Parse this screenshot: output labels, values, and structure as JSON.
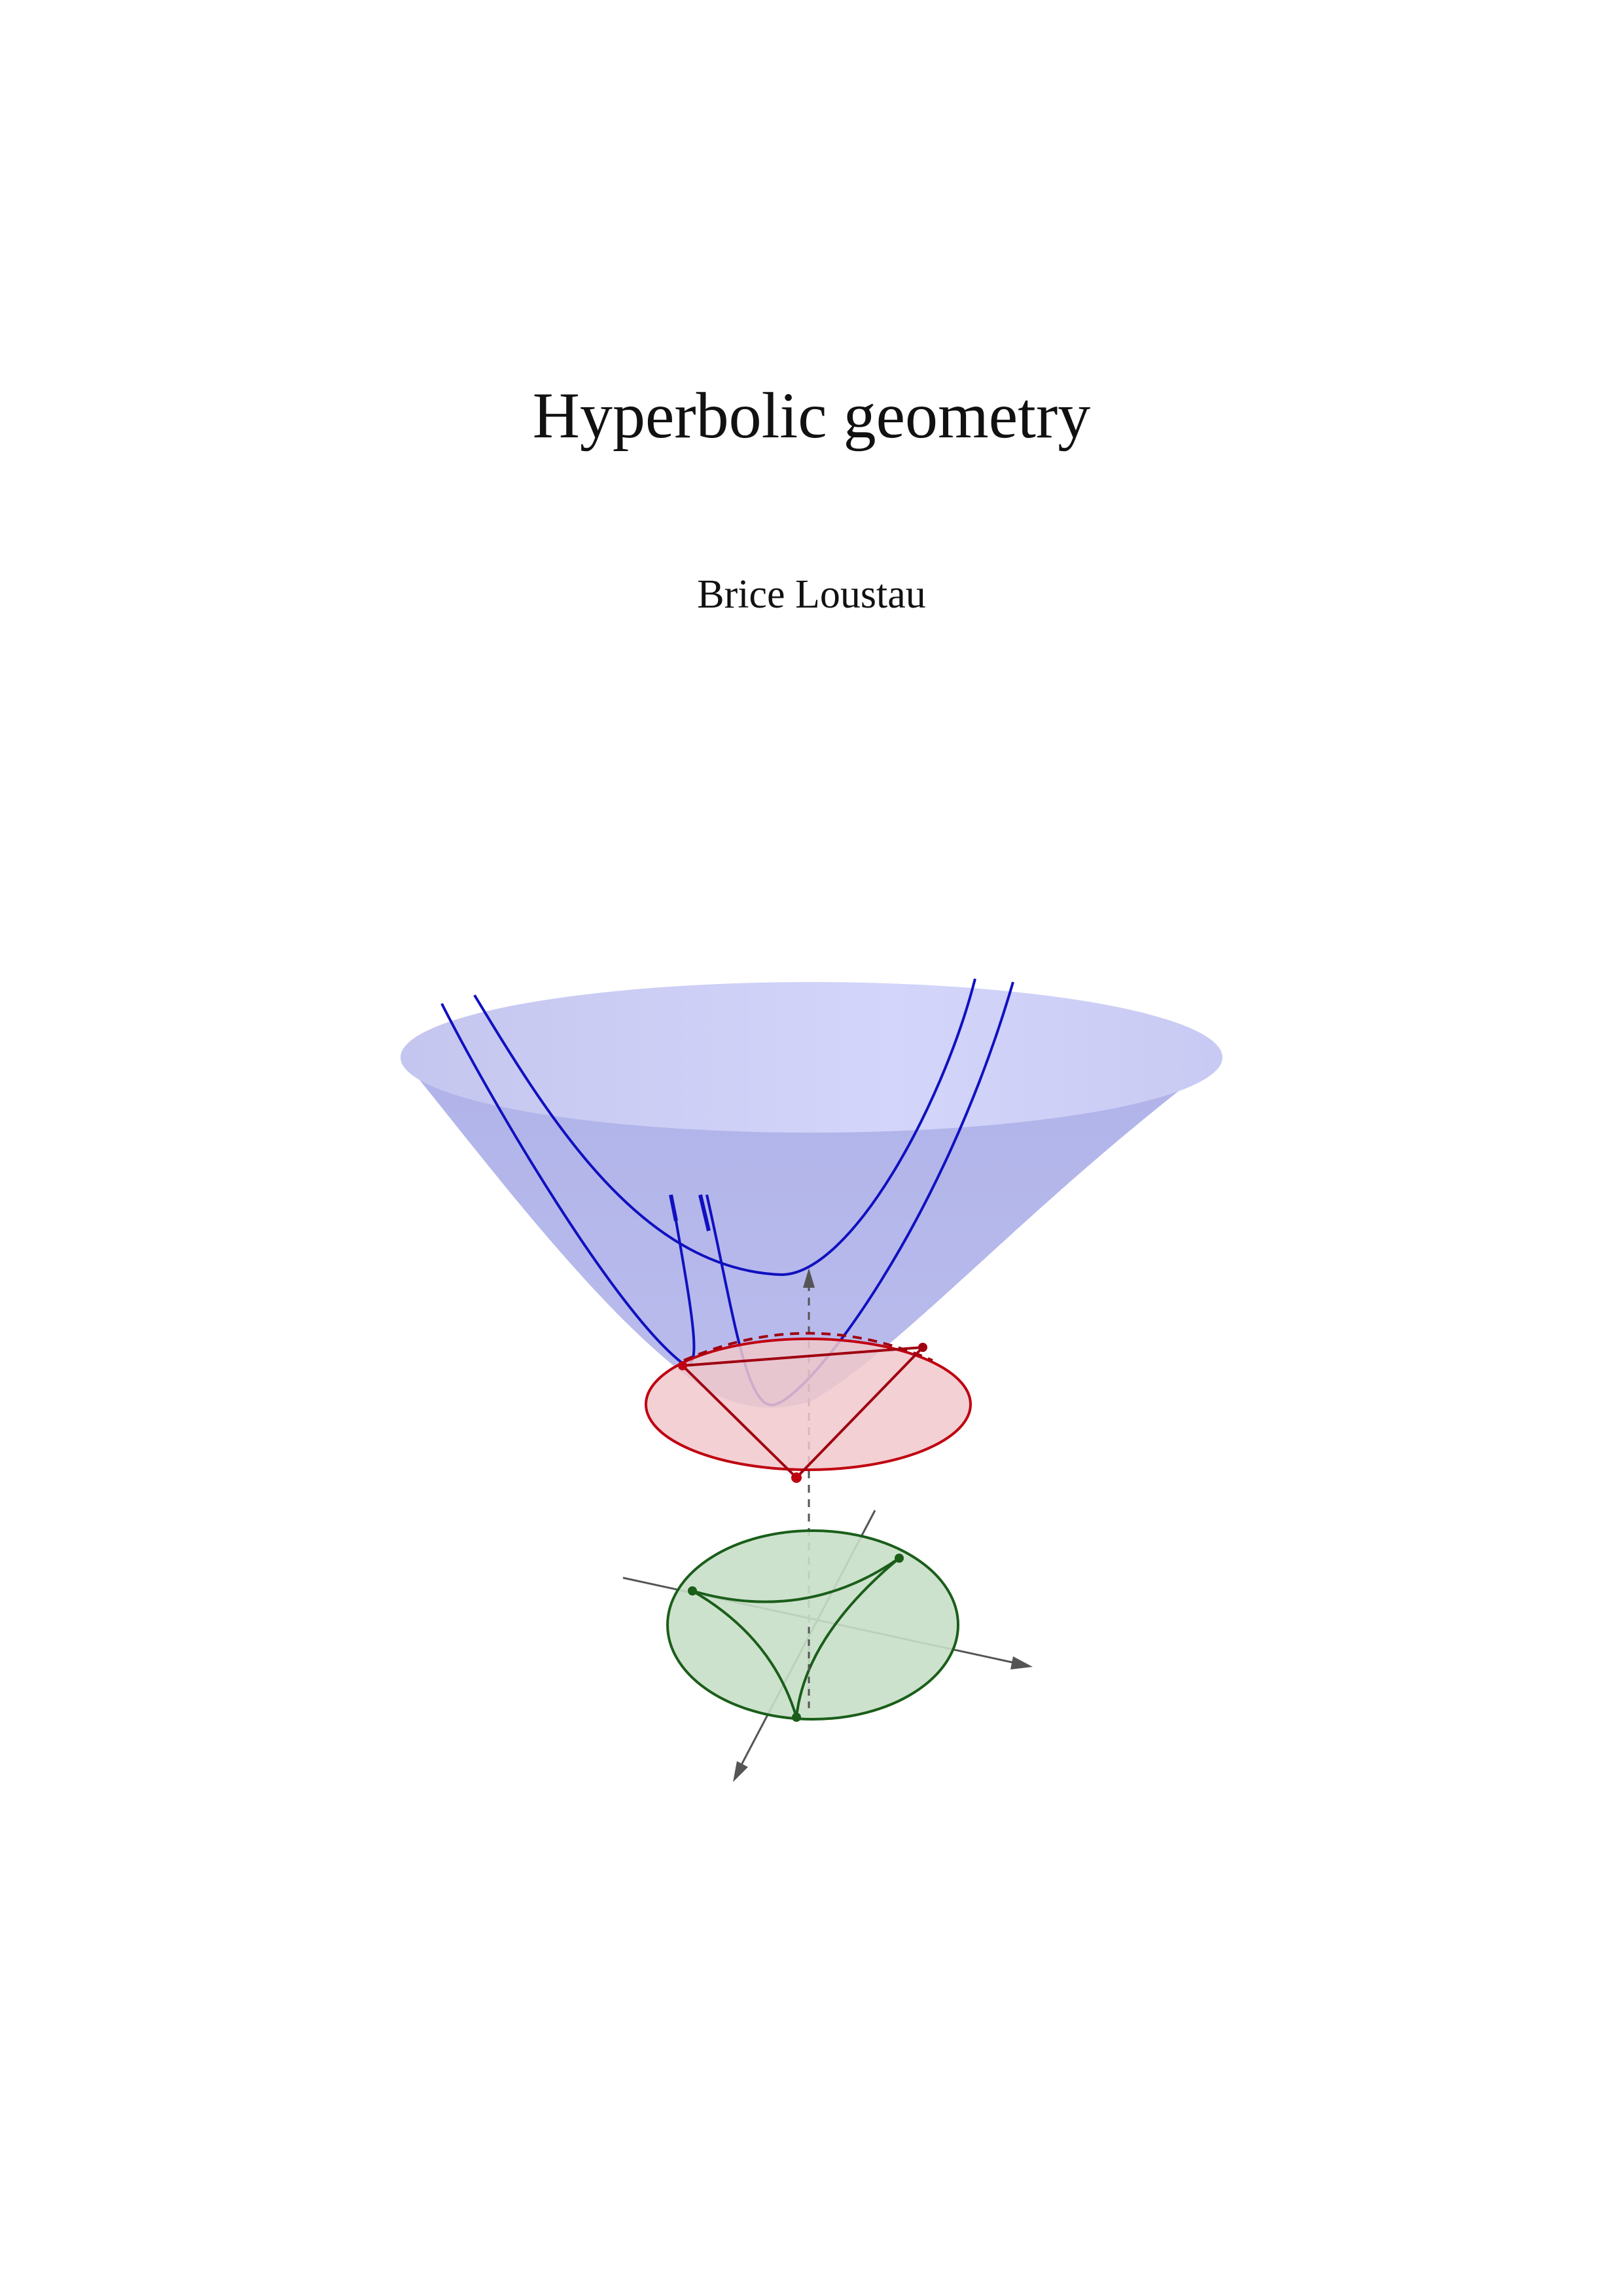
{
  "document": {
    "title": "Hyperbolic geometry",
    "author": "Brice Loustau"
  },
  "cover_figure": {
    "subject": "hyperboloid model with Klein and Poincaré disk models",
    "hyperboloid_fill": "#b3b6ec",
    "hyperboloid_rim_fill": "#cfd1f7",
    "geodesic_color": "#1010c0",
    "klein_disk_fill": "#f0c8cb",
    "klein_disk_stroke": "#c00010",
    "klein_triangle_color": "#a00010",
    "poincare_disk_fill": "#c8dfc8",
    "poincare_disk_stroke": "#1a5e1a",
    "axis_color": "#555555"
  }
}
